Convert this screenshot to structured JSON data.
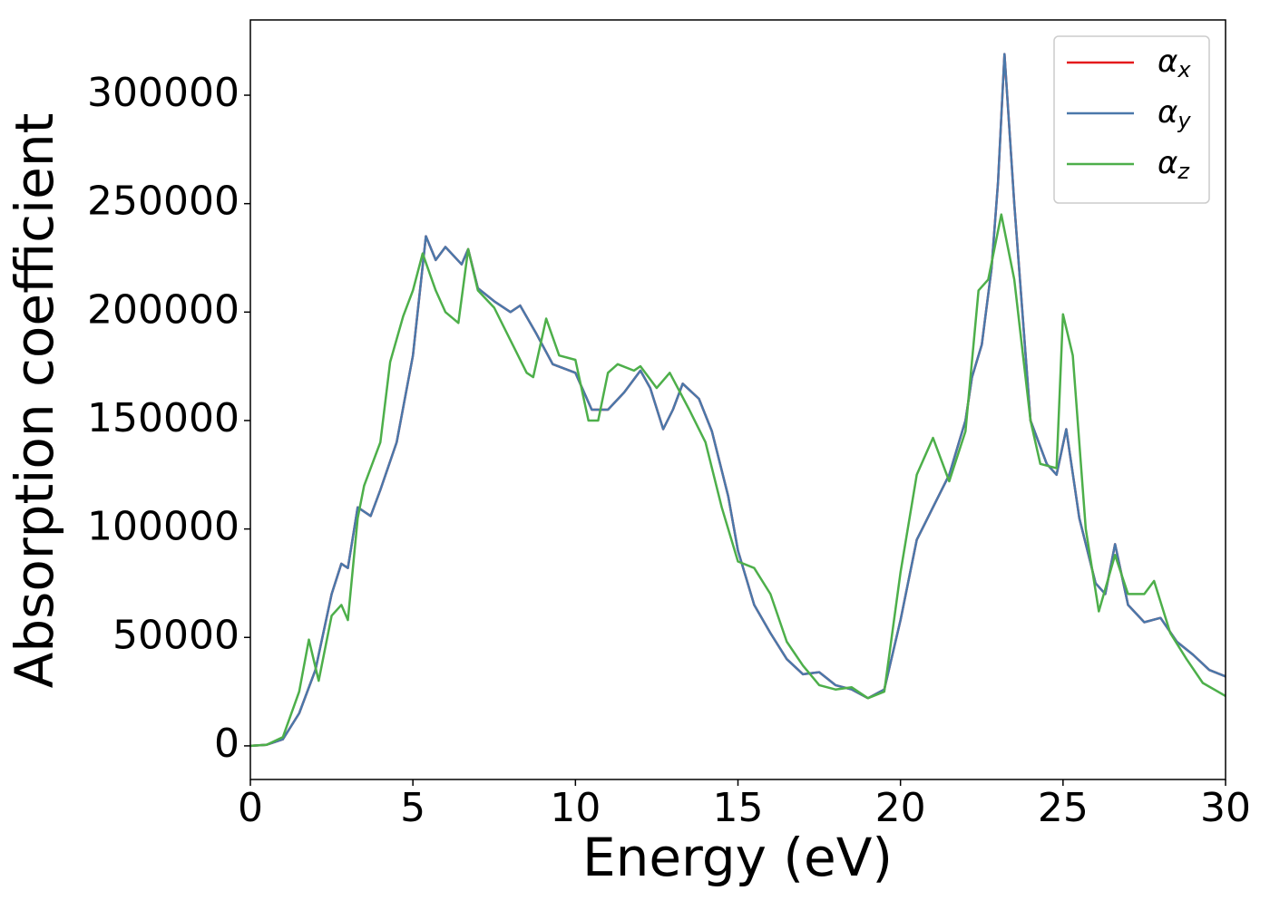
{
  "chart_data": {
    "type": "line",
    "xlabel": "Energy (eV)",
    "ylabel": "Absorption coefficient",
    "xlim": [
      0,
      30
    ],
    "ylim": [
      -15500,
      334700
    ],
    "xticks": [
      0,
      5,
      10,
      15,
      20,
      25,
      30
    ],
    "yticks": [
      0,
      50000,
      100000,
      150000,
      200000,
      250000,
      300000
    ],
    "legend": "upper right",
    "series": [
      {
        "name": "αx",
        "color": "#e41a1c",
        "x": [
          0,
          0.5,
          1,
          1.5,
          2,
          2.5,
          2.8,
          3,
          3.3,
          3.7,
          4,
          4.5,
          5,
          5.4,
          5.7,
          6,
          6.5,
          6.7,
          7,
          7.5,
          8,
          8.3,
          8.8,
          9.3,
          10,
          10.5,
          11,
          11.5,
          12,
          12.3,
          12.7,
          13,
          13.3,
          13.8,
          14.2,
          14.7,
          15,
          15.5,
          16,
          16.5,
          17,
          17.5,
          18,
          18.5,
          19,
          19.5,
          20,
          20.5,
          21,
          21.5,
          22,
          22.2,
          22.5,
          22.8,
          23,
          23.2,
          23.5,
          24,
          24.5,
          24.8,
          25.1,
          25.5,
          26,
          26.3,
          26.6,
          27,
          27.5,
          28,
          28.5,
          29,
          29.5,
          30
        ],
        "values": [
          0,
          500,
          3000,
          15000,
          35000,
          70000,
          84000,
          82000,
          110000,
          106000,
          118000,
          140000,
          180000,
          235000,
          224000,
          230000,
          222000,
          229000,
          211000,
          205000,
          200000,
          203000,
          190000,
          176000,
          172000,
          155000,
          155000,
          163000,
          173000,
          165000,
          146000,
          155000,
          167000,
          160000,
          145000,
          115000,
          90000,
          65000,
          52000,
          40000,
          33000,
          34000,
          28000,
          26000,
          22000,
          26000,
          58000,
          95000,
          110000,
          125000,
          150000,
          170000,
          185000,
          220000,
          260000,
          319000,
          250000,
          150000,
          130000,
          125000,
          146000,
          105000,
          75000,
          70000,
          93000,
          65000,
          57000,
          59000,
          48000,
          42000,
          35000,
          32000
        ]
      },
      {
        "name": "αy",
        "color": "#4a78aa",
        "x": [
          0,
          0.5,
          1,
          1.5,
          2,
          2.5,
          2.8,
          3,
          3.3,
          3.7,
          4,
          4.5,
          5,
          5.4,
          5.7,
          6,
          6.5,
          6.7,
          7,
          7.5,
          8,
          8.3,
          8.8,
          9.3,
          10,
          10.5,
          11,
          11.5,
          12,
          12.3,
          12.7,
          13,
          13.3,
          13.8,
          14.2,
          14.7,
          15,
          15.5,
          16,
          16.5,
          17,
          17.5,
          18,
          18.5,
          19,
          19.5,
          20,
          20.5,
          21,
          21.5,
          22,
          22.2,
          22.5,
          22.8,
          23,
          23.2,
          23.5,
          24,
          24.5,
          24.8,
          25.1,
          25.5,
          26,
          26.3,
          26.6,
          27,
          27.5,
          28,
          28.5,
          29,
          29.5,
          30
        ],
        "values": [
          0,
          500,
          3000,
          15000,
          35000,
          70000,
          84000,
          82000,
          110000,
          106000,
          118000,
          140000,
          180000,
          235000,
          224000,
          230000,
          222000,
          229000,
          211000,
          205000,
          200000,
          203000,
          190000,
          176000,
          172000,
          155000,
          155000,
          163000,
          173000,
          165000,
          146000,
          155000,
          167000,
          160000,
          145000,
          115000,
          90000,
          65000,
          52000,
          40000,
          33000,
          34000,
          28000,
          26000,
          22000,
          26000,
          58000,
          95000,
          110000,
          125000,
          150000,
          170000,
          185000,
          220000,
          260000,
          319000,
          250000,
          150000,
          130000,
          125000,
          146000,
          105000,
          75000,
          70000,
          93000,
          65000,
          57000,
          59000,
          48000,
          42000,
          35000,
          32000
        ]
      },
      {
        "name": "αz",
        "color": "#4daf4a",
        "x": [
          0,
          0.5,
          1,
          1.5,
          1.8,
          2.1,
          2.5,
          2.8,
          3,
          3.3,
          3.5,
          4,
          4.3,
          4.7,
          5,
          5.3,
          5.7,
          6,
          6.4,
          6.7,
          7,
          7.5,
          8,
          8.5,
          8.7,
          9.1,
          9.5,
          10,
          10.4,
          10.7,
          11,
          11.3,
          11.8,
          12,
          12.5,
          12.9,
          13.5,
          14,
          14.5,
          15,
          15.5,
          16,
          16.5,
          17,
          17.5,
          18,
          18.5,
          19,
          19.5,
          20,
          20.5,
          21,
          21.5,
          22,
          22.4,
          22.7,
          23.1,
          23.5,
          24,
          24.3,
          24.8,
          25,
          25.3,
          25.7,
          26.1,
          26.6,
          27,
          27.5,
          27.8,
          28.3,
          28.8,
          29.3,
          30
        ],
        "values": [
          0,
          500,
          4000,
          25000,
          49000,
          30000,
          60000,
          65000,
          58000,
          105000,
          120000,
          140000,
          177000,
          198000,
          210000,
          227000,
          210000,
          200000,
          195000,
          229000,
          210000,
          202000,
          187000,
          172000,
          170000,
          197000,
          180000,
          178000,
          150000,
          150000,
          172000,
          176000,
          173000,
          175000,
          165000,
          172000,
          155000,
          140000,
          110000,
          85000,
          82000,
          70000,
          48000,
          37000,
          28000,
          26000,
          27000,
          22000,
          25000,
          80000,
          125000,
          142000,
          122000,
          145000,
          210000,
          215000,
          245000,
          215000,
          150000,
          130000,
          128000,
          199000,
          180000,
          100000,
          62000,
          88000,
          70000,
          70000,
          76000,
          52000,
          40000,
          29000,
          23000
        ]
      }
    ]
  }
}
